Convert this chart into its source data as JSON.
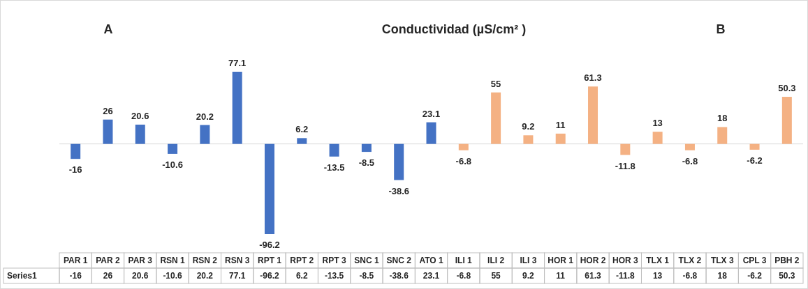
{
  "chart_data": {
    "type": "bar",
    "title": "Conductividad (µS/cm² )",
    "annotations": [
      "A",
      "B",
      "-16",
      "26",
      "20.6",
      "-10.6",
      "20.2",
      "77.1",
      "-96.2",
      "6.2",
      "-13.5",
      "-8.5",
      "-38.6",
      "23.1",
      "-6.8",
      "55",
      "9.2",
      "11",
      "61.3",
      "-11.8",
      "13",
      "-6.8",
      "18",
      "-6.2",
      "50.3"
    ],
    "categories": [
      "PAR 1",
      "PAR 2",
      "PAR 3",
      "RSN 1",
      "RSN 2",
      "RSN 3",
      "RPT 1",
      "RPT 2",
      "RPT 3",
      "SNC 1",
      "SNC 2",
      "ATO 1",
      "ILI 1",
      "ILI 2",
      "ILI 3",
      "HOR 1",
      "HOR 2",
      "HOR 3",
      "TLX 1",
      "TLX 2",
      "TLX 3",
      "CPL 3",
      "PBH 2"
    ],
    "series": [
      {
        "name": "Series1",
        "values": [
          -16,
          26,
          20.6,
          -10.6,
          20.2,
          77.1,
          -96.2,
          6.2,
          -13.5,
          -8.5,
          -38.6,
          23.1,
          -6.8,
          55,
          9.2,
          11,
          61.3,
          -11.8,
          13,
          -6.8,
          18,
          -6.2,
          50.3
        ],
        "colors": [
          "#4472c4",
          "#4472c4",
          "#4472c4",
          "#4472c4",
          "#4472c4",
          "#4472c4",
          "#4472c4",
          "#4472c4",
          "#4472c4",
          "#4472c4",
          "#4472c4",
          "#4472c4",
          "#f4b183",
          "#f4b183",
          "#f4b183",
          "#f4b183",
          "#f4b183",
          "#f4b183",
          "#f4b183",
          "#f4b183",
          "#f4b183",
          "#f4b183",
          "#f4b183"
        ]
      }
    ],
    "data_labels": true
  }
}
